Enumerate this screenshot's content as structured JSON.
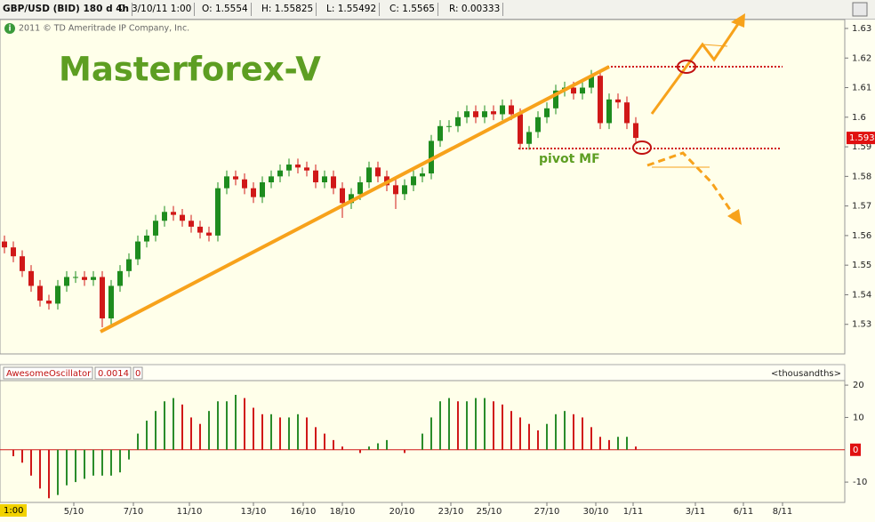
{
  "header": {
    "symbol": "GBP/USD (BID) 180 d 4h",
    "date": "D: 3/10/11 1:00",
    "open": "O: 1.5554",
    "high": "H: 1.55825",
    "low": "L: 1.55492",
    "close": "C: 1.5565",
    "range": "R: 0.00333"
  },
  "copyright": "2011 © TD Ameritrade IP Company, Inc.",
  "chart_data": [
    {
      "type": "candlestick",
      "title": "Masterforex-V",
      "annotation": "pivot MF",
      "up_color": "#1e8c1e",
      "down_color": "#d01818",
      "open": [
        1.558,
        1.556,
        1.553,
        1.548,
        1.543,
        1.538,
        1.537,
        1.543,
        1.546,
        1.546,
        1.545,
        1.546,
        1.532,
        1.543,
        1.548,
        1.552,
        1.558,
        1.56,
        1.565,
        1.568,
        1.567,
        1.565,
        1.563,
        1.561,
        1.56,
        1.576,
        1.58,
        1.579,
        1.576,
        1.573,
        1.578,
        1.58,
        1.582,
        1.584,
        1.583,
        1.582,
        1.578,
        1.58,
        1.576,
        1.571,
        1.574,
        1.578,
        1.583,
        1.58,
        1.577,
        1.574,
        1.577,
        1.58,
        1.581,
        1.592,
        1.597,
        1.597,
        1.6,
        1.602,
        1.6,
        1.602,
        1.601,
        1.604,
        1.601,
        1.591,
        1.595,
        1.6,
        1.603,
        1.609,
        1.61,
        1.608,
        1.61,
        1.614,
        1.598,
        1.606,
        1.605,
        1.598
      ],
      "high": [
        1.56,
        1.558,
        1.555,
        1.55,
        1.545,
        1.54,
        1.545,
        1.548,
        1.548,
        1.548,
        1.548,
        1.548,
        1.545,
        1.55,
        1.554,
        1.56,
        1.562,
        1.567,
        1.57,
        1.57,
        1.569,
        1.567,
        1.565,
        1.563,
        1.578,
        1.582,
        1.582,
        1.581,
        1.578,
        1.58,
        1.582,
        1.584,
        1.586,
        1.586,
        1.585,
        1.584,
        1.582,
        1.582,
        1.578,
        1.576,
        1.58,
        1.585,
        1.585,
        1.582,
        1.579,
        1.579,
        1.582,
        1.583,
        1.594,
        1.599,
        1.599,
        1.602,
        1.604,
        1.604,
        1.604,
        1.604,
        1.606,
        1.606,
        1.603,
        1.597,
        1.602,
        1.605,
        1.611,
        1.612,
        1.612,
        1.612,
        1.616,
        1.616,
        1.608,
        1.608,
        1.607,
        1.6
      ],
      "low": [
        1.554,
        1.551,
        1.546,
        1.541,
        1.536,
        1.535,
        1.535,
        1.541,
        1.544,
        1.543,
        1.543,
        1.529,
        1.53,
        1.541,
        1.546,
        1.55,
        1.556,
        1.558,
        1.563,
        1.565,
        1.563,
        1.561,
        1.559,
        1.558,
        1.558,
        1.574,
        1.577,
        1.574,
        1.571,
        1.571,
        1.576,
        1.578,
        1.58,
        1.581,
        1.58,
        1.576,
        1.576,
        1.574,
        1.566,
        1.569,
        1.572,
        1.576,
        1.578,
        1.575,
        1.569,
        1.572,
        1.575,
        1.578,
        1.579,
        1.59,
        1.595,
        1.595,
        1.598,
        1.598,
        1.598,
        1.599,
        1.599,
        1.599,
        1.589,
        1.589,
        1.593,
        1.598,
        1.601,
        1.607,
        1.606,
        1.606,
        1.608,
        1.596,
        1.596,
        1.603,
        1.596,
        1.591
      ],
      "close": [
        1.556,
        1.553,
        1.548,
        1.543,
        1.538,
        1.537,
        1.543,
        1.546,
        1.546,
        1.545,
        1.546,
        1.532,
        1.543,
        1.548,
        1.552,
        1.558,
        1.56,
        1.565,
        1.568,
        1.567,
        1.565,
        1.563,
        1.561,
        1.56,
        1.576,
        1.58,
        1.579,
        1.576,
        1.573,
        1.578,
        1.58,
        1.582,
        1.584,
        1.583,
        1.582,
        1.578,
        1.58,
        1.576,
        1.571,
        1.574,
        1.578,
        1.583,
        1.58,
        1.577,
        1.574,
        1.577,
        1.58,
        1.581,
        1.592,
        1.597,
        1.597,
        1.6,
        1.602,
        1.6,
        1.602,
        1.601,
        1.604,
        1.601,
        1.591,
        1.595,
        1.6,
        1.603,
        1.609,
        1.61,
        1.608,
        1.61,
        1.614,
        1.598,
        1.606,
        1.605,
        1.598,
        1.593
      ],
      "last_price": 1.593,
      "xlim": [
        -0.5,
        94.5
      ],
      "xticks": [
        {
          "value": 7.8,
          "label": "5/10"
        },
        {
          "value": 14.5,
          "label": "7/10"
        },
        {
          "value": 20.8,
          "label": "11/10"
        },
        {
          "value": 28,
          "label": "13/10"
        },
        {
          "value": 33.6,
          "label": "16/10"
        },
        {
          "value": 38,
          "label": "18/10"
        },
        {
          "value": 44.7,
          "label": "20/10"
        },
        {
          "value": 50.2,
          "label": "23/10"
        },
        {
          "value": 54.5,
          "label": "25/10"
        },
        {
          "value": 61,
          "label": "27/10"
        },
        {
          "value": 66.5,
          "label": "30/10"
        },
        {
          "value": 70.7,
          "label": "1/11"
        },
        {
          "value": 77.7,
          "label": "3/11"
        },
        {
          "value": 83.1,
          "label": "6/11"
        },
        {
          "value": 87.5,
          "label": "8/11"
        }
      ],
      "x_cursor_label": "1:00",
      "ylim": [
        1.52,
        1.633
      ],
      "yticks": [
        1.63,
        1.62,
        1.61,
        {
          "value": 1.6,
          "label": "1.6"
        },
        1.59,
        1.58,
        1.57,
        1.56,
        1.55,
        1.54,
        1.53
      ]
    },
    {
      "type": "bar",
      "title": "AwesomeOscillator",
      "readout": [
        "0.0014",
        "0"
      ],
      "units": "<thousandths>",
      "up_color": "#2a8c2a",
      "down_color": "#d01818",
      "values": [
        0,
        -2,
        -4,
        -8,
        -12,
        -15,
        -14,
        -11,
        -10,
        -9,
        -8,
        -8,
        -8,
        -7,
        -3,
        5,
        9,
        12,
        15,
        16,
        14,
        10,
        8,
        12,
        15,
        15,
        17,
        16,
        13,
        11,
        11,
        10,
        10,
        11,
        10,
        7,
        5,
        3,
        1,
        0,
        -1,
        1,
        2,
        3,
        0,
        -1,
        0,
        5,
        10,
        15,
        16,
        15,
        15,
        16,
        16,
        15,
        14,
        12,
        10,
        8,
        6,
        8,
        11,
        12,
        11,
        10,
        7,
        4,
        3,
        4,
        4,
        1
      ],
      "xlim": [
        -0.5,
        94.5
      ],
      "ylim": [
        -16.3,
        21.4
      ],
      "yticks": [
        20,
        10,
        0,
        -10
      ]
    }
  ]
}
